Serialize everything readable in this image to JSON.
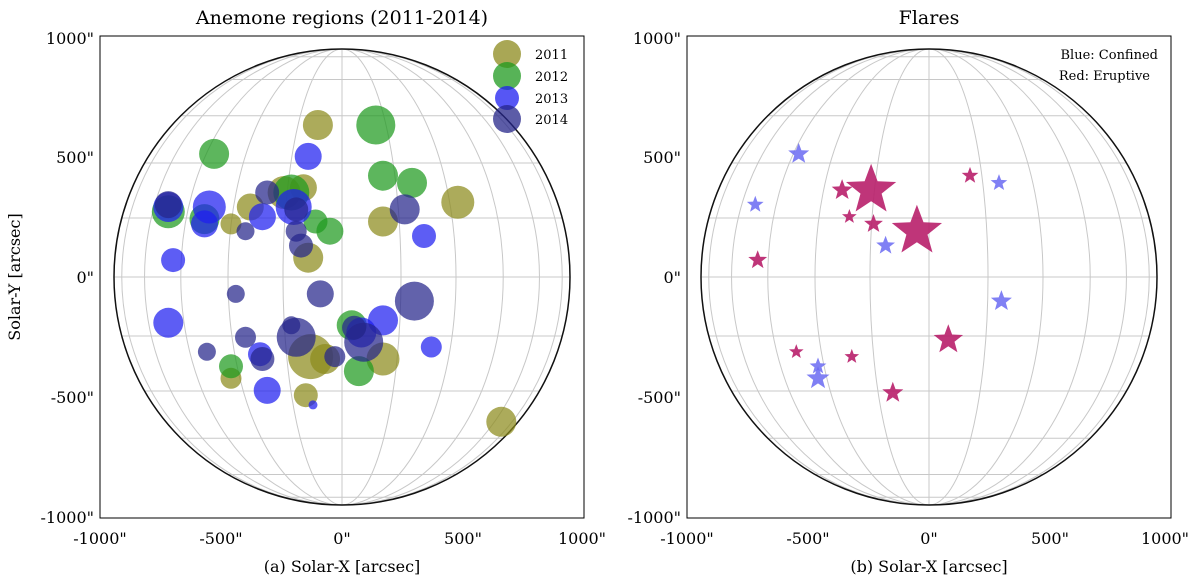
{
  "colors": {
    "2011": "#8c8a1c",
    "2012": "#1f9a1f",
    "2013": "#1e1ef0",
    "2014": "#26258a",
    "confined": "#6a6af2",
    "eruptive": "#b81f6a",
    "grid": "#c8c8c8"
  },
  "chart_data": [
    {
      "type": "scatter",
      "title": "Anemone regions (2011-2014)",
      "xlabel": "(a) Solar-X [arcsec]",
      "ylabel": "Solar-Y [arcsec]",
      "xlim": [
        -1000,
        1000
      ],
      "ylim": [
        -1000,
        1000
      ],
      "xticks": [
        "-1000\"",
        "-500\"",
        "0\"",
        "500\"",
        "1000\""
      ],
      "yticks": [
        "1000\"",
        "500\"",
        "0\"",
        "-500\"",
        "-1000\""
      ],
      "legend_position": "top-right",
      "series": [
        {
          "name": "2011",
          "color": "2011",
          "points": [
            [
              -100,
              630,
              1.0
            ],
            [
              480,
              310,
              1.1
            ],
            [
              170,
              230,
              1.0
            ],
            [
              -240,
              350,
              1.1
            ],
            [
              -160,
              370,
              0.9
            ],
            [
              -380,
              290,
              0.9
            ],
            [
              -460,
              220,
              0.7
            ],
            [
              -140,
              80,
              1.0
            ],
            [
              -70,
              -340,
              1.0
            ],
            [
              -130,
              -330,
              1.5
            ],
            [
              -150,
              -490,
              0.8
            ],
            [
              -460,
              -420,
              0.7
            ],
            [
              170,
              -340,
              1.1
            ],
            [
              660,
              -600,
              1.0
            ]
          ]
        },
        {
          "name": "2012",
          "color": "2012",
          "points": [
            [
              140,
              630,
              1.3
            ],
            [
              -530,
              510,
              1.0
            ],
            [
              170,
              420,
              1.0
            ],
            [
              290,
              390,
              1.0
            ],
            [
              -210,
              350,
              1.2
            ],
            [
              -570,
              240,
              1.0
            ],
            [
              -720,
              270,
              1.1
            ],
            [
              -110,
              230,
              0.8
            ],
            [
              -50,
              190,
              0.9
            ],
            [
              40,
              -200,
              1.0
            ],
            [
              70,
              -390,
              1.0
            ],
            [
              -460,
              -370,
              0.8
            ]
          ]
        },
        {
          "name": "2013",
          "color": "2013",
          "points": [
            [
              -140,
              500,
              0.9
            ],
            [
              -720,
              290,
              1.0
            ],
            [
              -550,
              290,
              1.1
            ],
            [
              -570,
              220,
              0.9
            ],
            [
              -330,
              250,
              0.9
            ],
            [
              -200,
              290,
              1.2
            ],
            [
              340,
              170,
              0.8
            ],
            [
              -700,
              70,
              0.8
            ],
            [
              -720,
              -190,
              1.0
            ],
            [
              170,
              -180,
              1.0
            ],
            [
              370,
              -290,
              0.7
            ],
            [
              -340,
              -320,
              0.8
            ],
            [
              -310,
              -470,
              0.9
            ],
            [
              -120,
              -530,
              0.3
            ],
            [
              80,
              -230,
              1.0
            ]
          ]
        },
        {
          "name": "2014",
          "color": "2014",
          "points": [
            [
              -720,
              300,
              0.9
            ],
            [
              -310,
              350,
              0.8
            ],
            [
              260,
              280,
              1.0
            ],
            [
              -190,
              280,
              0.8
            ],
            [
              -400,
              190,
              0.6
            ],
            [
              -190,
              190,
              0.7
            ],
            [
              -170,
              130,
              0.8
            ],
            [
              -440,
              -70,
              0.6
            ],
            [
              -90,
              -70,
              0.9
            ],
            [
              300,
              -100,
              1.3
            ],
            [
              -400,
              -250,
              0.7
            ],
            [
              -210,
              -200,
              0.6
            ],
            [
              -190,
              -250,
              1.3
            ],
            [
              -330,
              -340,
              0.8
            ],
            [
              -560,
              -310,
              0.6
            ],
            [
              90,
              -270,
              1.3
            ],
            [
              50,
              -210,
              0.8
            ],
            [
              -30,
              -330,
              0.7
            ]
          ]
        }
      ]
    },
    {
      "type": "scatter",
      "title": "Flares",
      "xlabel": "(b) Solar-X [arcsec]",
      "xlim": [
        -1000,
        1000
      ],
      "ylim": [
        -1000,
        1000
      ],
      "xticks": [
        "-1000\"",
        "-500\"",
        "0\"",
        "500\"",
        "1000\""
      ],
      "yticks": [
        "1000\"",
        "500\"",
        "0\"",
        "-500\"",
        "-1000\""
      ],
      "annotations": [
        "Blue: Confined",
        "Red: Eruptive"
      ],
      "series": [
        {
          "name": "Confined",
          "color": "confined",
          "points": [
            [
              -540,
              510,
              1.0
            ],
            [
              -720,
              300,
              0.8
            ],
            [
              290,
              390,
              0.8
            ],
            [
              -180,
              130,
              0.9
            ],
            [
              300,
              -100,
              1.0
            ],
            [
              -460,
              -370,
              0.8
            ],
            [
              -460,
              -420,
              1.1
            ]
          ]
        },
        {
          "name": "Eruptive",
          "color": "eruptive",
          "points": [
            [
              -240,
              360,
              2.4
            ],
            [
              -50,
              190,
              2.4
            ],
            [
              -360,
              360,
              1.0
            ],
            [
              -330,
              250,
              0.7
            ],
            [
              -230,
              220,
              0.9
            ],
            [
              -710,
              70,
              0.9
            ],
            [
              170,
              420,
              0.8
            ],
            [
              80,
              -260,
              1.4
            ],
            [
              -550,
              -310,
              0.7
            ],
            [
              -320,
              -330,
              0.7
            ],
            [
              -150,
              -480,
              1.0
            ]
          ]
        }
      ]
    }
  ]
}
